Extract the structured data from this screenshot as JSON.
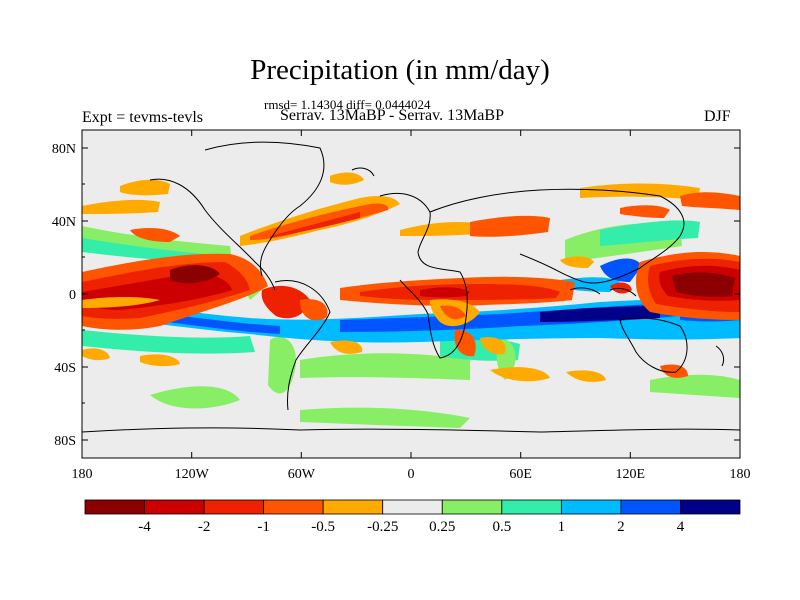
{
  "map": {
    "title": "Precipitation (in mm/day)",
    "stats": "rmsd= 1.14304 diff= 0.0444024",
    "left_label": "Expt = tevms-tevls",
    "center_label": "Serrav.   13MaBP - Serrav.   13MaBP",
    "right_label": "DJF",
    "lat_ticks": [
      "80N",
      "40N",
      "0",
      "40S",
      "80S"
    ],
    "lon_ticks": [
      "180",
      "120W",
      "60W",
      "0",
      "60E",
      "120E",
      "180"
    ],
    "legend": {
      "labels": [
        "-4",
        "-2",
        "-1",
        "-0.5",
        "-0.25",
        "0.25",
        "0.5",
        "1",
        "2",
        "4"
      ],
      "colors": [
        "#8b0000",
        "#cc0000",
        "#ee2200",
        "#ff5500",
        "#ffaa00",
        "#ececec",
        "#88ee66",
        "#33eeaa",
        "#00bbff",
        "#0055ff",
        "#000088"
      ]
    },
    "colors": {
      "background_field": "#ececec",
      "coastline": "#000000"
    }
  }
}
